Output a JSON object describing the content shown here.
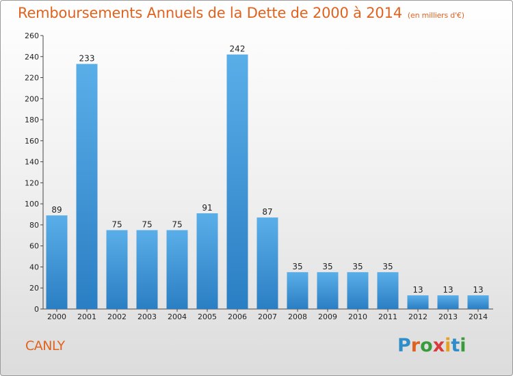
{
  "title": "Remboursements Annuels de la Dette de 2000 à 2014",
  "subtitle": "(en milliers d'€)",
  "commune": "CANLY",
  "logo": {
    "letters": [
      "P",
      "r",
      "o",
      "x",
      "i",
      "t",
      "i"
    ],
    "colors": [
      "#2f8ec9",
      "#e0621f",
      "#3a9b3a",
      "#d93a3a",
      "#e8a01f",
      "#2f8ec9",
      "#3a9b3a"
    ]
  },
  "colors": {
    "bar_top": "#5aaee8",
    "bar_bottom": "#2a7ec3",
    "title": "#e0621f"
  },
  "chart_data": {
    "type": "bar",
    "categories": [
      "2000",
      "2001",
      "2002",
      "2003",
      "2004",
      "2005",
      "2006",
      "2007",
      "2008",
      "2009",
      "2010",
      "2011",
      "2012",
      "2013",
      "2014"
    ],
    "values": [
      89,
      233,
      75,
      75,
      75,
      91,
      242,
      87,
      35,
      35,
      35,
      35,
      13,
      13,
      13
    ],
    "ylim": [
      0,
      260
    ],
    "yticks": [
      0,
      20,
      40,
      60,
      80,
      100,
      120,
      140,
      160,
      180,
      200,
      220,
      240,
      260
    ],
    "grid": false,
    "legend": "none"
  }
}
